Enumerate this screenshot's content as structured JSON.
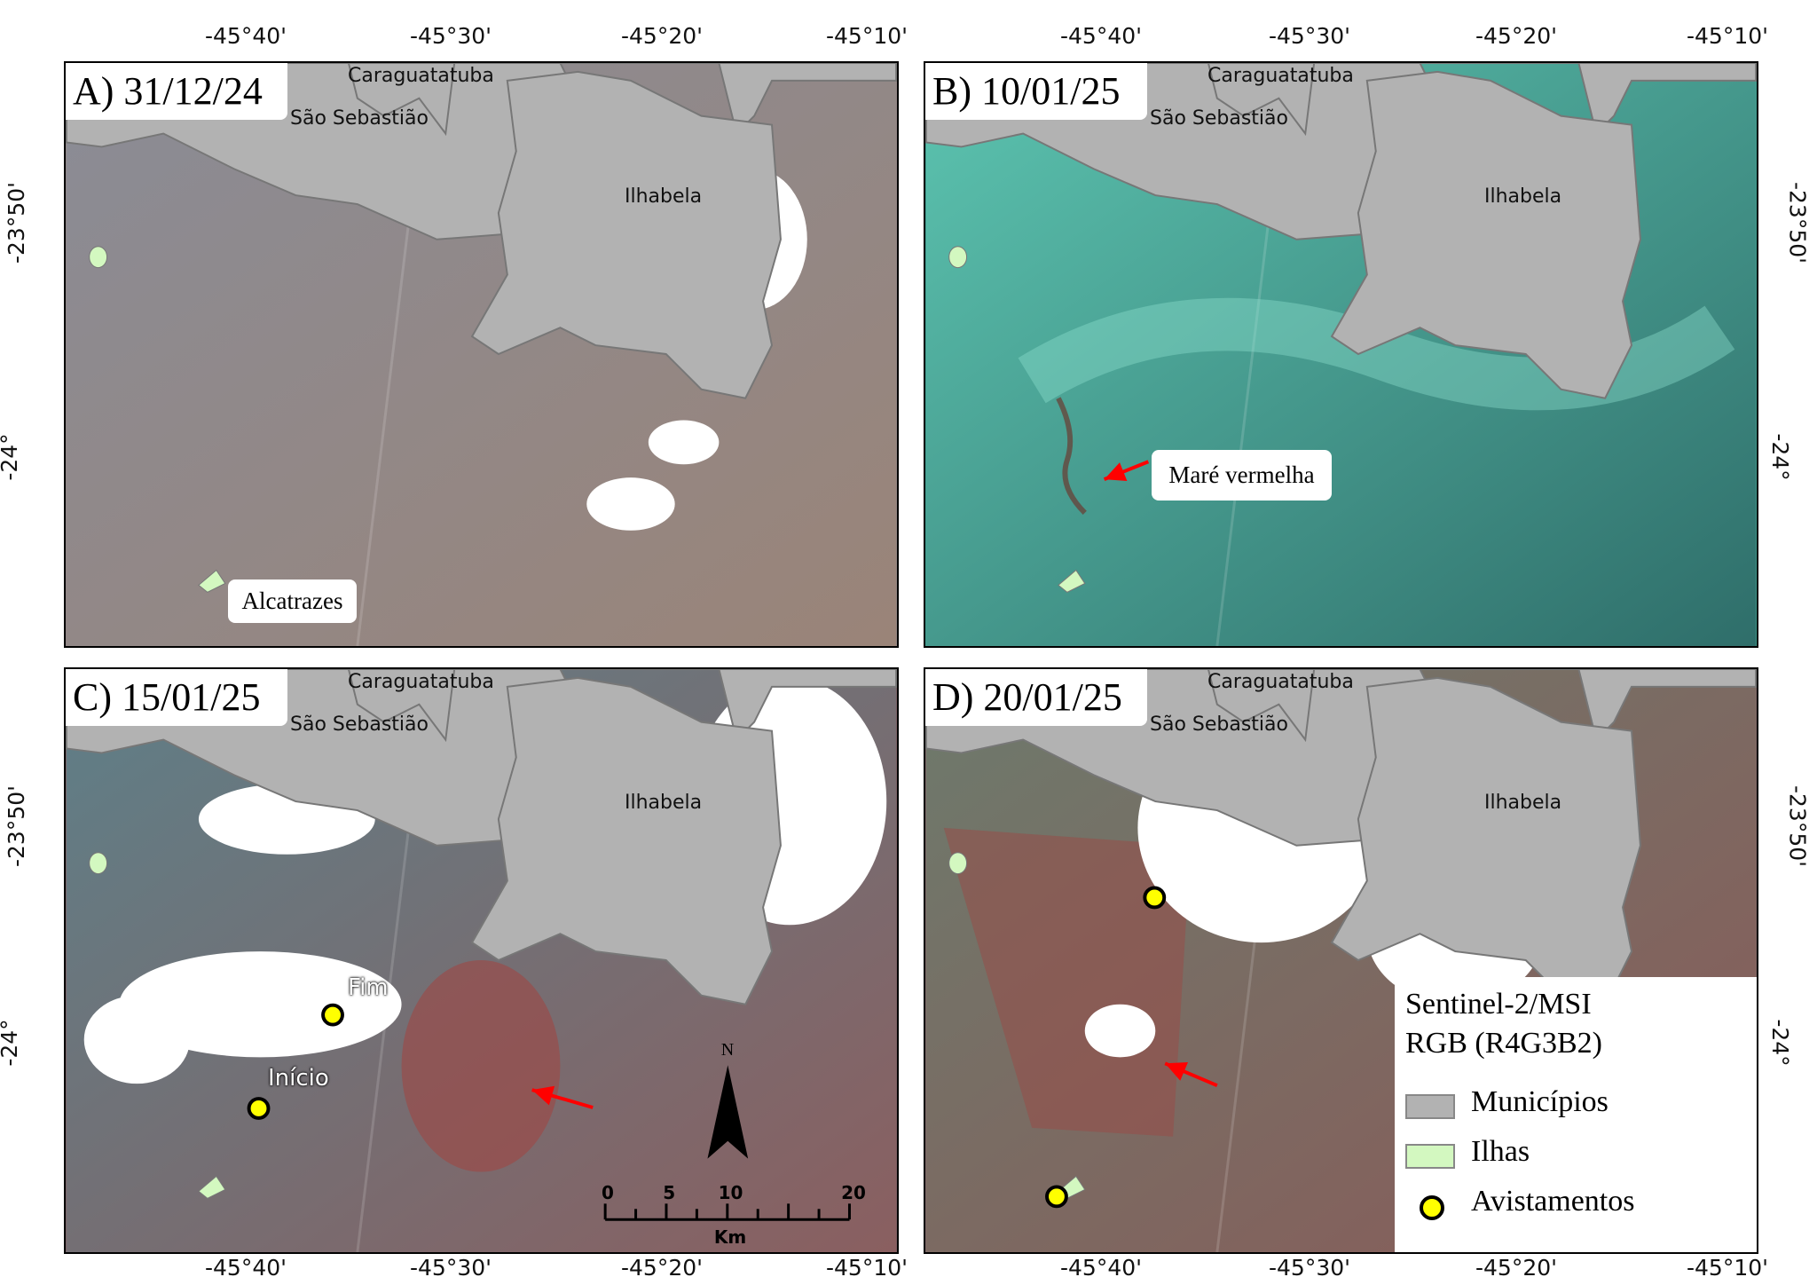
{
  "axes": {
    "top_labels": [
      "-45°40'",
      "-45°30'",
      "-45°20'",
      "-45°10'"
    ],
    "bottom_labels": [
      "-45°40'",
      "-45°30'",
      "-45°20'",
      "-45°10'"
    ],
    "left_labels": [
      "-23°50'",
      "-24°"
    ],
    "right_labels": [
      "-23°50'",
      "-24°"
    ]
  },
  "places": {
    "caraguatatuba": "Caraguatatuba",
    "sao_sebastiao": "São Sebastião",
    "ilhabela": "Ilhabela"
  },
  "panels": [
    {
      "id": "A",
      "title": "A) 31/12/24",
      "water": "#8f8484",
      "callout": "Alcatrazes"
    },
    {
      "id": "B",
      "title": "B) 10/01/25",
      "water": "#3f9c8e",
      "callout": "Maré vermelha"
    },
    {
      "id": "C",
      "title": "C) 15/01/25",
      "water": "#7a5f63",
      "markers": [
        "Fim",
        "Início"
      ]
    },
    {
      "id": "D",
      "title": "D) 20/01/25",
      "water": "#7d6666"
    }
  ],
  "scale_bar": {
    "ticks": [
      "0",
      "5",
      "10",
      "20"
    ],
    "unit": "Km",
    "north": "N"
  },
  "legend": {
    "title_line1": "Sentinel-2/MSI",
    "title_line2": "RGB (R4G3B2)",
    "items": [
      {
        "label": "Municípios",
        "color": "#b2b2b2"
      },
      {
        "label": "Ilhas",
        "color": "#d3f8c0"
      },
      {
        "label": "Avistamentos",
        "color": "#ffff00"
      }
    ]
  },
  "colors": {
    "land": "#b2b2b2",
    "islands": "#d3f8c0",
    "arrow": "#ff0000",
    "sighting": "#ffff00"
  }
}
